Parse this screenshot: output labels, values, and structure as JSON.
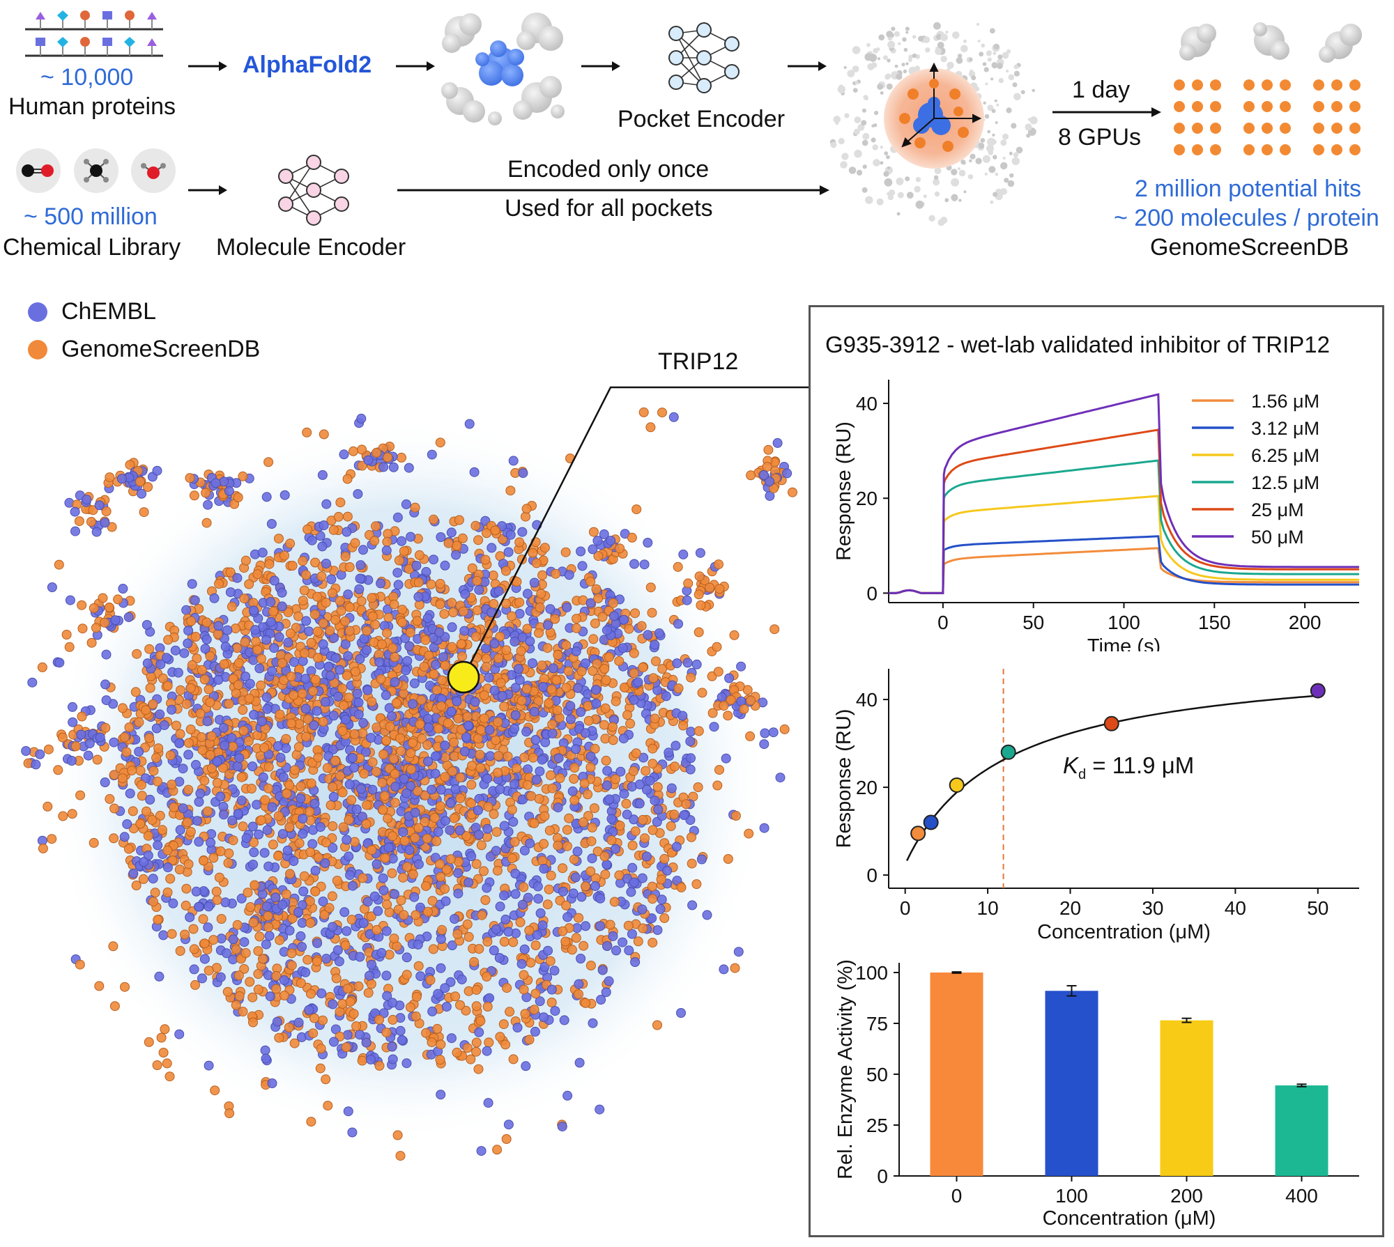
{
  "pipeline": {
    "proteins_count": "~ 10,000",
    "proteins_label": "Human proteins",
    "alphafold": "AlphaFold2",
    "pocket_encoder": "Pocket Encoder",
    "library_count": "~ 500 million",
    "library_label": "Chemical Library",
    "molecule_encoder": "Molecule Encoder",
    "encoded_once": "Encoded only once",
    "used_for_all": "Used for all pockets",
    "time": "1 day",
    "gpus": "8 GPUs",
    "hits": "2 million potential hits",
    "per_protein": "~ 200 molecules / protein",
    "db_name": "GenomeScreenDB"
  },
  "legend": {
    "chembl": "ChEMBL",
    "genomescreendb": "GenomeScreenDB",
    "chembl_color": "#6a6fe0",
    "gsdb_color": "#f0893a"
  },
  "callout": {
    "target": "TRIP12"
  },
  "panel": {
    "title": "G935-3912 - wet-lab validated inhibitor of TRIP12"
  },
  "chart_data": [
    {
      "type": "line",
      "xlabel": "Time (s)",
      "ylabel": "Response (RU)",
      "xlim": [
        -30,
        230
      ],
      "ylim": [
        -2,
        45
      ],
      "xticks": [
        0,
        50,
        100,
        150,
        200
      ],
      "yticks": [
        0,
        20,
        40
      ],
      "series": [
        {
          "name": "1.56 μM",
          "color": "#f28c3c",
          "assoc_start": 6,
          "assoc_end": 9.5,
          "dissoc_end": 2.3
        },
        {
          "name": "3.12 μM",
          "color": "#2450c8",
          "assoc_start": 9,
          "assoc_end": 12,
          "dissoc_end": 1.8
        },
        {
          "name": "6.25 μM",
          "color": "#f6c81c",
          "assoc_start": 15,
          "assoc_end": 20.5,
          "dissoc_end": 2.8
        },
        {
          "name": "12.5 μM",
          "color": "#1aa88f",
          "assoc_start": 20,
          "assoc_end": 28,
          "dissoc_end": 4.0
        },
        {
          "name": "25 μM",
          "color": "#dd4a17",
          "assoc_start": 23,
          "assoc_end": 34.5,
          "dissoc_end": 5.0
        },
        {
          "name": "50 μM",
          "color": "#6e2fb8",
          "assoc_start": 25,
          "assoc_end": 42,
          "dissoc_end": 5.5
        }
      ]
    },
    {
      "type": "scatter",
      "xlabel": "Concentration (μM)",
      "ylabel": "Response (RU)",
      "xlim": [
        -2,
        55
      ],
      "ylim": [
        -3,
        47
      ],
      "xticks": [
        0,
        10,
        20,
        30,
        40,
        50
      ],
      "yticks": [
        0,
        20,
        40
      ],
      "points": [
        {
          "x": 1.56,
          "y": 9.5,
          "color": "#f28c3c"
        },
        {
          "x": 3.12,
          "y": 12,
          "color": "#2450c8"
        },
        {
          "x": 6.25,
          "y": 20.5,
          "color": "#f6c81c"
        },
        {
          "x": 12.5,
          "y": 28,
          "color": "#1aa88f"
        },
        {
          "x": 25,
          "y": 34.5,
          "color": "#dd4a17"
        },
        {
          "x": 50,
          "y": 42,
          "color": "#6e2fb8"
        }
      ],
      "kd_value": 11.9,
      "kd_label_k": "K",
      "kd_label_sub": "d",
      "kd_label_rest": " = 11.9 μM"
    },
    {
      "type": "bar",
      "xlabel": "Concentration (μM)",
      "ylabel": "Rel. Enzyme Activity (%)",
      "categories": [
        "0",
        "100",
        "200",
        "400"
      ],
      "values": [
        100,
        91,
        76.5,
        44.5
      ],
      "errors": [
        0.3,
        2.5,
        1.0,
        0.6
      ],
      "colors": [
        "#f8893a",
        "#2651cc",
        "#f8cc16",
        "#1cb894"
      ],
      "ylim": [
        0,
        100
      ],
      "yticks": [
        0,
        25,
        50,
        75,
        100
      ]
    }
  ]
}
